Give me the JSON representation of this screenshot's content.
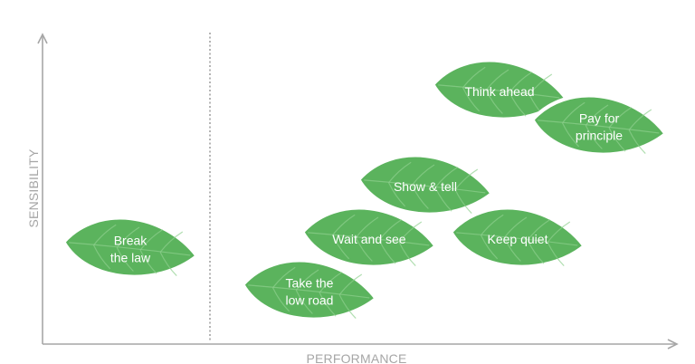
{
  "axes": {
    "x_label": "PERFORMANCE",
    "y_label": "SENSIBILITY"
  },
  "colors": {
    "leaf_fill": "#5bb35d",
    "leaf_edge": "#ffffff",
    "vein": "#8fd08f",
    "axis": "#a6a6a6",
    "divider": "#8c8c8c"
  },
  "leaves": [
    {
      "id": "break-the-law",
      "lines": [
        "Break",
        "the law"
      ]
    },
    {
      "id": "take-the-low-road",
      "lines": [
        "Take the",
        "low road"
      ]
    },
    {
      "id": "wait-and-see",
      "lines": [
        "Wait and see"
      ]
    },
    {
      "id": "show-and-tell",
      "lines": [
        "Show & tell"
      ]
    },
    {
      "id": "keep-quiet",
      "lines": [
        "Keep quiet"
      ]
    },
    {
      "id": "think-ahead",
      "lines": [
        "Think ahead"
      ]
    },
    {
      "id": "pay-for-principle",
      "lines": [
        "Pay for",
        "principle"
      ]
    }
  ]
}
